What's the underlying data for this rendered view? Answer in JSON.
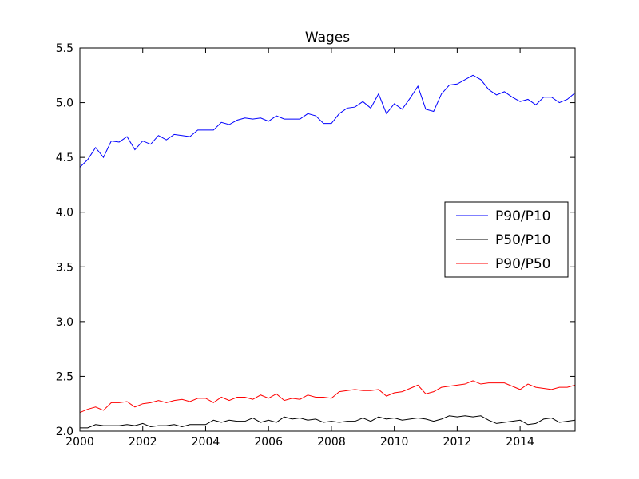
{
  "chart_data": {
    "type": "line",
    "title": "Wages",
    "xlabel": "",
    "ylabel": "",
    "xlim": [
      2000,
      2015.75
    ],
    "ylim": [
      2.0,
      5.5
    ],
    "x_ticks": [
      2000,
      2002,
      2004,
      2006,
      2008,
      2010,
      2012,
      2014
    ],
    "x_tick_labels": [
      "2000",
      "2002",
      "2004",
      "2006",
      "2008",
      "2010",
      "2012",
      "2014"
    ],
    "y_ticks": [
      2.0,
      2.5,
      3.0,
      3.5,
      4.0,
      4.5,
      5.0,
      5.5
    ],
    "y_tick_labels": [
      "2.0",
      "2.5",
      "3.0",
      "3.5",
      "4.0",
      "4.5",
      "5.0",
      "5.5"
    ],
    "grid": false,
    "legend_position": "center-right",
    "x": [
      2000.0,
      2000.25,
      2000.5,
      2000.75,
      2001.0,
      2001.25,
      2001.5,
      2001.75,
      2002.0,
      2002.25,
      2002.5,
      2002.75,
      2003.0,
      2003.25,
      2003.5,
      2003.75,
      2004.0,
      2004.25,
      2004.5,
      2004.75,
      2005.0,
      2005.25,
      2005.5,
      2005.75,
      2006.0,
      2006.25,
      2006.5,
      2006.75,
      2007.0,
      2007.25,
      2007.5,
      2007.75,
      2008.0,
      2008.25,
      2008.5,
      2008.75,
      2009.0,
      2009.25,
      2009.5,
      2009.75,
      2010.0,
      2010.25,
      2010.5,
      2010.75,
      2011.0,
      2011.25,
      2011.5,
      2011.75,
      2012.0,
      2012.25,
      2012.5,
      2012.75,
      2013.0,
      2013.25,
      2013.5,
      2013.75,
      2014.0,
      2014.25,
      2014.5,
      2014.75,
      2015.0,
      2015.25,
      2015.5,
      2015.75
    ],
    "series": [
      {
        "name": "P90/P10",
        "color": "#0000ff",
        "values": [
          4.41,
          4.48,
          4.59,
          4.5,
          4.65,
          4.64,
          4.69,
          4.57,
          4.65,
          4.62,
          4.7,
          4.66,
          4.71,
          4.7,
          4.69,
          4.75,
          4.75,
          4.75,
          4.82,
          4.8,
          4.84,
          4.86,
          4.85,
          4.86,
          4.83,
          4.88,
          4.85,
          4.85,
          4.85,
          4.9,
          4.88,
          4.81,
          4.81,
          4.9,
          4.95,
          4.96,
          5.01,
          4.95,
          5.08,
          4.9,
          4.99,
          4.94,
          5.04,
          5.15,
          4.94,
          4.92,
          5.08,
          5.16,
          5.17,
          5.21,
          5.25,
          5.21,
          5.12,
          5.07,
          5.1,
          5.05,
          5.01,
          5.03,
          4.98,
          5.05,
          5.05,
          5.0,
          5.03,
          5.09
        ]
      },
      {
        "name": "P50/P10",
        "color": "#000000",
        "values": [
          2.03,
          2.03,
          2.06,
          2.05,
          2.05,
          2.05,
          2.06,
          2.05,
          2.07,
          2.04,
          2.05,
          2.05,
          2.06,
          2.04,
          2.06,
          2.06,
          2.06,
          2.1,
          2.08,
          2.1,
          2.09,
          2.09,
          2.12,
          2.08,
          2.1,
          2.08,
          2.13,
          2.11,
          2.12,
          2.1,
          2.11,
          2.08,
          2.09,
          2.08,
          2.09,
          2.09,
          2.12,
          2.09,
          2.13,
          2.11,
          2.12,
          2.1,
          2.11,
          2.12,
          2.11,
          2.09,
          2.11,
          2.14,
          2.13,
          2.14,
          2.13,
          2.14,
          2.1,
          2.07,
          2.08,
          2.09,
          2.1,
          2.06,
          2.07,
          2.11,
          2.12,
          2.08,
          2.09,
          2.1
        ]
      },
      {
        "name": "P90/P50",
        "color": "#ff0000",
        "values": [
          2.17,
          2.2,
          2.22,
          2.19,
          2.26,
          2.26,
          2.27,
          2.22,
          2.25,
          2.26,
          2.28,
          2.26,
          2.28,
          2.29,
          2.27,
          2.3,
          2.3,
          2.26,
          2.31,
          2.28,
          2.31,
          2.31,
          2.29,
          2.33,
          2.3,
          2.34,
          2.28,
          2.3,
          2.29,
          2.33,
          2.31,
          2.31,
          2.3,
          2.36,
          2.37,
          2.38,
          2.37,
          2.37,
          2.38,
          2.32,
          2.35,
          2.36,
          2.39,
          2.42,
          2.34,
          2.36,
          2.4,
          2.41,
          2.42,
          2.43,
          2.46,
          2.43,
          2.44,
          2.44,
          2.44,
          2.41,
          2.38,
          2.43,
          2.4,
          2.39,
          2.38,
          2.4,
          2.4,
          2.42
        ]
      }
    ]
  }
}
